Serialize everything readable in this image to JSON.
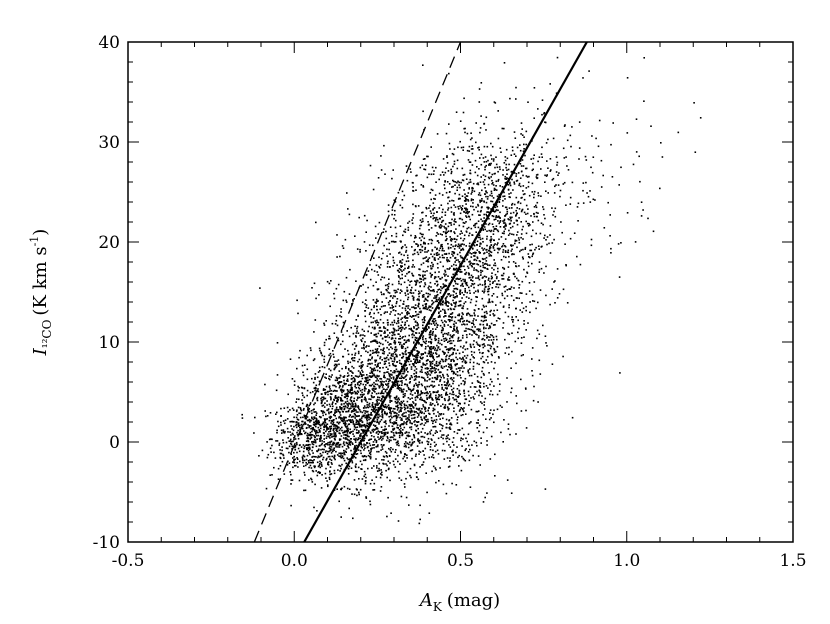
{
  "chart_data": {
    "type": "scatter",
    "title": "",
    "xlabel": {
      "symbol": "A",
      "subscript": "K",
      "unit": "(mag)"
    },
    "ylabel": {
      "symbol": "I",
      "subscript": "¹²CO",
      "unit_prefix": "(K km s",
      "unit_sup": "-1",
      "unit_suffix": ")"
    },
    "xlim": [
      -0.5,
      1.5
    ],
    "ylim": [
      -10,
      40
    ],
    "xticks": [
      -0.5,
      0.0,
      0.5,
      1.0,
      1.5
    ],
    "xtick_labels": [
      "-0.5",
      "0.0",
      "0.5",
      "1.0",
      "1.5"
    ],
    "yticks": [
      -10,
      0,
      10,
      20,
      30,
      40
    ],
    "ytick_labels": [
      "-10",
      "0",
      "10",
      "20",
      "30",
      "40"
    ],
    "grid": false,
    "lines": [
      {
        "style": "solid",
        "x": [
          0.03,
          0.88
        ],
        "y": [
          -10,
          40
        ]
      },
      {
        "style": "dashed",
        "x": [
          -0.12,
          0.5
        ],
        "y": [
          -10,
          40
        ]
      }
    ],
    "scatter_regions": [
      {
        "cx": 0.05,
        "cy": 0.5,
        "sx": 0.06,
        "sy": 2.0,
        "n": 500
      },
      {
        "cx": 0.18,
        "cy": 2.0,
        "sx": 0.09,
        "sy": 3.0,
        "n": 1100
      },
      {
        "cx": 0.3,
        "cy": 6.0,
        "sx": 0.12,
        "sy": 4.5,
        "n": 1300
      },
      {
        "cx": 0.42,
        "cy": 12.0,
        "sx": 0.13,
        "sy": 5.5,
        "n": 1400
      },
      {
        "cx": 0.52,
        "cy": 19.0,
        "sx": 0.12,
        "sy": 5.0,
        "n": 1000
      },
      {
        "cx": 0.62,
        "cy": 25.0,
        "sx": 0.1,
        "sy": 4.0,
        "n": 500
      },
      {
        "cx": 0.85,
        "cy": 27.0,
        "sx": 0.15,
        "sy": 4.5,
        "n": 80
      },
      {
        "cx": 0.42,
        "cy": 4.0,
        "sx": 0.1,
        "sy": 4.0,
        "n": 300
      }
    ],
    "scatter_outliers": [
      {
        "x": 1.05,
        "y": 38.5
      },
      {
        "x": 1.0,
        "y": 36.5
      },
      {
        "x": 1.2,
        "y": 34.0
      },
      {
        "x": 1.22,
        "y": 32.5
      },
      {
        "x": 1.1,
        "y": 30.0
      },
      {
        "x": 0.95,
        "y": 19.0
      },
      {
        "x": 0.98,
        "y": 20.0
      },
      {
        "x": 0.82,
        "y": 14.0
      },
      {
        "x": 0.79,
        "y": 14.5
      },
      {
        "x": 1.0,
        "y": 23.0
      },
      {
        "x": 0.93,
        "y": 21.5
      },
      {
        "x": 0.63,
        "y": 38.0
      },
      {
        "x": 0.56,
        "y": 36.0
      },
      {
        "x": 0.72,
        "y": 35.5
      },
      {
        "x": 0.75,
        "y": 33.0
      }
    ]
  }
}
